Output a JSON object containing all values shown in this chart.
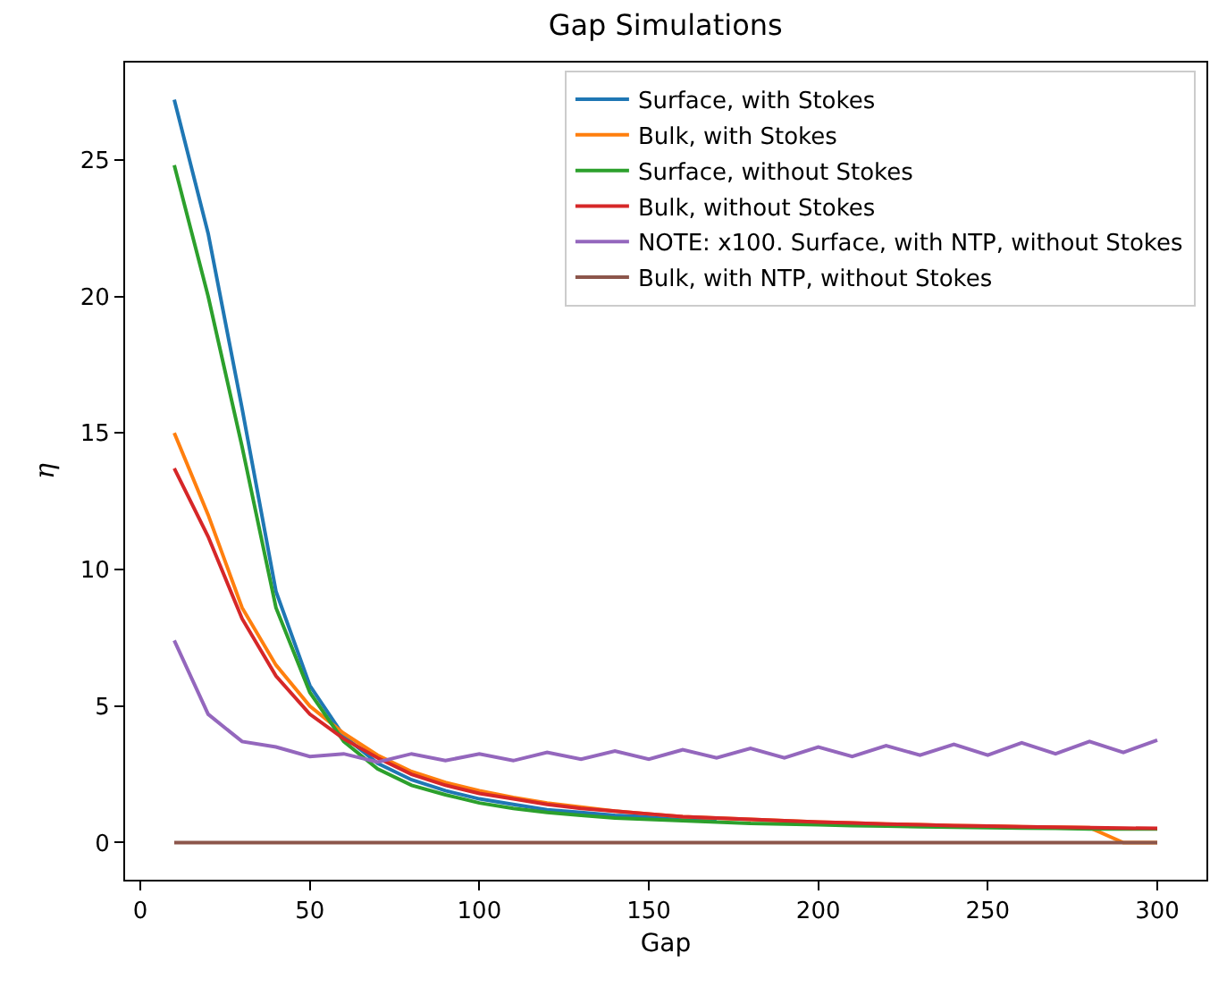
{
  "chart_data": {
    "type": "line",
    "title": "Gap Simulations",
    "xlabel": "Gap",
    "ylabel": "η",
    "x": [
      10,
      20,
      30,
      40,
      50,
      60,
      70,
      80,
      90,
      100,
      110,
      120,
      130,
      140,
      150,
      160,
      170,
      180,
      190,
      200,
      210,
      220,
      230,
      240,
      250,
      260,
      270,
      280,
      290,
      300
    ],
    "xlim": [
      -4.5,
      314.5
    ],
    "xticks": [
      0,
      50,
      100,
      150,
      200,
      250,
      300
    ],
    "ylim": [
      -1.36,
      28.56
    ],
    "yticks": [
      0,
      5,
      10,
      15,
      20,
      25
    ],
    "grid": false,
    "legend": "top right",
    "marker": "none",
    "line_style": "solid",
    "series": [
      {
        "name": "Surface, with Stokes",
        "color": "#1f77b4",
        "values": [
          27.2,
          22.3,
          15.9,
          9.2,
          5.75,
          3.9,
          2.9,
          2.3,
          1.9,
          1.6,
          1.4,
          1.2,
          1.1,
          1.0,
          0.95,
          0.9,
          0.85,
          null,
          null,
          null,
          null,
          null,
          null,
          null,
          null,
          null,
          null,
          null,
          null,
          null
        ]
      },
      {
        "name": "Bulk, with Stokes",
        "color": "#ff7f0e",
        "values": [
          15.0,
          12.0,
          8.6,
          6.5,
          5.0,
          4.0,
          3.2,
          2.6,
          2.2,
          1.9,
          1.65,
          1.45,
          1.3,
          1.15,
          1.05,
          0.95,
          0.9,
          0.85,
          0.8,
          0.75,
          0.72,
          0.68,
          0.65,
          0.62,
          0.6,
          0.58,
          0.56,
          0.55,
          0,
          0
        ]
      },
      {
        "name": "Surface, without Stokes",
        "color": "#2ca02c",
        "values": [
          24.8,
          20.0,
          14.5,
          8.6,
          5.5,
          3.7,
          2.7,
          2.1,
          1.75,
          1.45,
          1.25,
          1.1,
          1.0,
          0.9,
          0.85,
          0.8,
          0.75,
          0.7,
          0.68,
          0.65,
          0.62,
          0.6,
          0.58,
          0.56,
          0.55,
          0.53,
          0.52,
          0.5,
          0.5,
          0.5
        ]
      },
      {
        "name": "Bulk, without Stokes",
        "color": "#d62728",
        "values": [
          13.7,
          11.2,
          8.2,
          6.1,
          4.7,
          3.8,
          3.1,
          2.5,
          2.1,
          1.8,
          1.6,
          1.4,
          1.25,
          1.15,
          1.05,
          0.95,
          0.9,
          0.85,
          0.8,
          0.75,
          0.72,
          0.68,
          0.65,
          0.62,
          0.6,
          0.58,
          0.56,
          0.55,
          0.53,
          0.52
        ]
      },
      {
        "name": "NOTE: x100. Surface, with NTP, without Stokes",
        "color": "#9467bd",
        "values": [
          7.4,
          4.7,
          3.7,
          3.5,
          3.15,
          3.25,
          2.95,
          3.25,
          3.0,
          3.25,
          3.0,
          3.3,
          3.05,
          3.35,
          3.05,
          3.4,
          3.1,
          3.45,
          3.1,
          3.5,
          3.15,
          3.55,
          3.2,
          3.6,
          3.2,
          3.65,
          3.25,
          3.7,
          3.3,
          3.75
        ]
      },
      {
        "name": "Bulk, with NTP, without Stokes",
        "color": "#8c564b",
        "values": [
          0,
          0,
          0,
          0,
          0,
          0,
          0,
          0,
          0,
          0,
          0,
          0,
          0,
          0,
          0,
          0,
          0,
          0,
          0,
          0,
          0,
          0,
          0,
          0,
          0,
          0,
          0,
          0,
          0,
          0
        ]
      }
    ]
  }
}
